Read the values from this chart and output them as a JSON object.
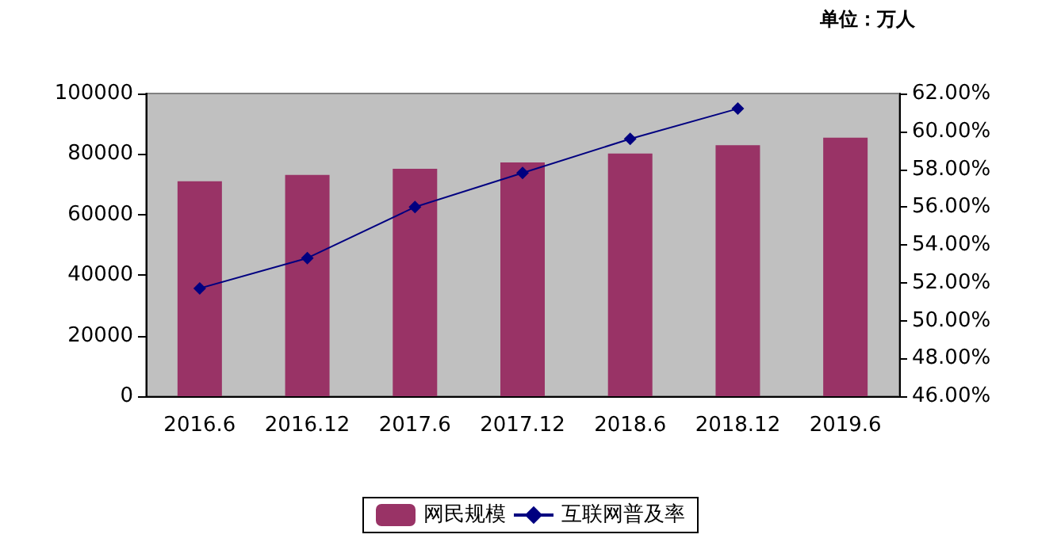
{
  "chart_data": {
    "type": "bar",
    "annotations": [
      "单位：万人"
    ],
    "categories": [
      "2016.6",
      "2016.12",
      "2017.6",
      "2017.12",
      "2018.6",
      "2018.12",
      "2019.6"
    ],
    "series": [
      {
        "name": "网民规模",
        "color": "#993366",
        "values": [
          71000,
          73100,
          75100,
          77200,
          80200,
          82900,
          85400
        ]
      },
      {
        "name": "互联网普及率",
        "type": "line",
        "axis": "y2",
        "color": "#000080",
        "marker": "diamond",
        "values": [
          51.7,
          53.3,
          56.0,
          57.8,
          59.6,
          61.2,
          null
        ]
      }
    ],
    "ylim": [
      0,
      100000
    ],
    "yticks": [
      0,
      20000,
      40000,
      60000,
      80000,
      100000
    ],
    "y2lim": [
      46,
      62
    ],
    "y2ticks": [
      {
        "value": 46,
        "label": "46.00%"
      },
      {
        "value": 48,
        "label": "48.00%"
      },
      {
        "value": 50,
        "label": "50.00%"
      },
      {
        "value": 52,
        "label": "52.00%"
      },
      {
        "value": 54,
        "label": "54.00%"
      },
      {
        "value": 56,
        "label": "56.00%"
      },
      {
        "value": 58,
        "label": "58.00%"
      },
      {
        "value": 60,
        "label": "60.00%"
      },
      {
        "value": 62,
        "label": "62.00%"
      }
    ],
    "legend": "bottom"
  }
}
